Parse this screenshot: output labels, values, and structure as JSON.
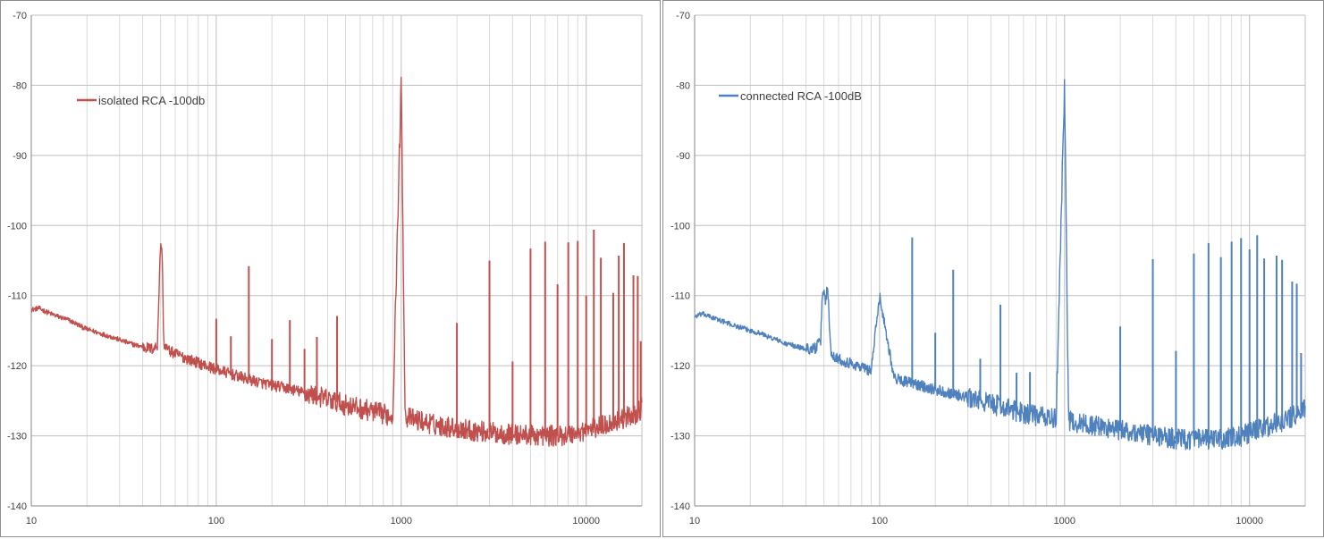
{
  "chart_data": [
    {
      "type": "line",
      "title": "",
      "xlabel": "",
      "ylabel": "",
      "x_scale": "log",
      "xlim": [
        10,
        20000
      ],
      "ylim": [
        -140,
        -70
      ],
      "xticks": [
        10,
        100,
        1000,
        10000
      ],
      "xtick_labels": [
        "10",
        "100",
        "1000",
        "10000"
      ],
      "yticks": [
        -70,
        -80,
        -90,
        -100,
        -110,
        -120,
        -130,
        -140
      ],
      "ytick_labels": [
        "-70",
        "-80",
        "-90",
        "-100",
        "-110",
        "-120",
        "-130",
        "-140"
      ],
      "grid": true,
      "legend_position": "top-left",
      "series": [
        {
          "name": "isolated RCA -100db",
          "color": "#c0504d",
          "x": [
            10,
            11,
            12,
            14,
            16,
            18,
            20,
            23,
            25,
            28,
            30,
            33,
            36,
            40,
            45,
            48,
            50,
            51,
            52,
            55,
            60,
            70,
            80,
            90,
            100,
            120,
            150,
            200,
            250,
            300,
            350,
            400,
            450,
            500,
            600,
            700,
            800,
            900,
            1000,
            1050,
            1200,
            1500,
            2000,
            2500,
            3000,
            3500,
            4000,
            5000,
            6000,
            7000,
            8000,
            9000,
            10000,
            11000,
            12000,
            14000,
            16000,
            18000,
            19000,
            20000
          ],
          "y": [
            -112,
            -111.8,
            -112.3,
            -113,
            -113.5,
            -114.2,
            -114.8,
            -115.3,
            -115.6,
            -116,
            -116.3,
            -116.7,
            -117,
            -117.3,
            -117.6,
            -117.2,
            -102.3,
            -104,
            -116.8,
            -117.8,
            -118.3,
            -119,
            -119.6,
            -120.1,
            -120.5,
            -121.2,
            -122,
            -122.8,
            -123.3,
            -123.9,
            -124.3,
            -124.8,
            -125.2,
            -125.6,
            -126.1,
            -126.5,
            -126.9,
            -127.2,
            -79.5,
            -127.3,
            -127.7,
            -128.4,
            -128.9,
            -129.3,
            -129.5,
            -129.7,
            -129.8,
            -129.9,
            -130,
            -130,
            -129.8,
            -129.5,
            -129.2,
            -128.9,
            -128.6,
            -128,
            -127.5,
            -127,
            -126.7,
            -126
          ]
        }
      ],
      "spikes": [
        {
          "x": 100,
          "y": -113.3
        },
        {
          "x": 120,
          "y": -115.8
        },
        {
          "x": 150,
          "y": -105.8
        },
        {
          "x": 200,
          "y": -116.2
        },
        {
          "x": 250,
          "y": -113.5
        },
        {
          "x": 300,
          "y": -117.6
        },
        {
          "x": 350,
          "y": -115.9
        },
        {
          "x": 450,
          "y": -112.9
        },
        {
          "x": 2000,
          "y": -113.9
        },
        {
          "x": 3000,
          "y": -105
        },
        {
          "x": 4000,
          "y": -119.4
        },
        {
          "x": 5000,
          "y": -103.3
        },
        {
          "x": 6000,
          "y": -102.3
        },
        {
          "x": 7000,
          "y": -108.4
        },
        {
          "x": 8000,
          "y": -102.4
        },
        {
          "x": 9000,
          "y": -102.2
        },
        {
          "x": 10000,
          "y": -110
        },
        {
          "x": 11000,
          "y": -100.6
        },
        {
          "x": 12000,
          "y": -104.6
        },
        {
          "x": 14000,
          "y": -109.6
        },
        {
          "x": 15000,
          "y": -104.3
        },
        {
          "x": 16000,
          "y": -102.5
        },
        {
          "x": 18000,
          "y": -107.1
        },
        {
          "x": 19000,
          "y": -107.2
        },
        {
          "x": 19700,
          "y": -116.5
        }
      ]
    },
    {
      "type": "line",
      "title": "",
      "xlabel": "",
      "ylabel": "",
      "x_scale": "log",
      "xlim": [
        10,
        20000
      ],
      "ylim": [
        -140,
        -70
      ],
      "xticks": [
        10,
        100,
        1000,
        10000
      ],
      "xtick_labels": [
        "10",
        "100",
        "1000",
        "10000"
      ],
      "yticks": [
        -70,
        -80,
        -90,
        -100,
        -110,
        -120,
        -130,
        -140
      ],
      "ytick_labels": [
        "-70",
        "-80",
        "-90",
        "-100",
        "-110",
        "-120",
        "-130",
        "-140"
      ],
      "grid": true,
      "legend_position": "top-left",
      "series": [
        {
          "name": "connected RCA -100dB",
          "color": "#4f81bd",
          "x": [
            10,
            11,
            12,
            14,
            16,
            18,
            20,
            23,
            25,
            28,
            30,
            33,
            36,
            40,
            45,
            48,
            49,
            50,
            51,
            52,
            53,
            54,
            55,
            60,
            70,
            80,
            90,
            100,
            120,
            150,
            200,
            250,
            300,
            350,
            400,
            450,
            500,
            600,
            700,
            800,
            900,
            1000,
            1050,
            1200,
            1500,
            2000,
            2500,
            3000,
            3500,
            4000,
            5000,
            6000,
            7000,
            8000,
            9000,
            10000,
            11000,
            12000,
            14000,
            16000,
            18000,
            19000,
            20000
          ],
          "y": [
            -113,
            -112.6,
            -113,
            -113.6,
            -114.2,
            -114.6,
            -115,
            -115.4,
            -115.9,
            -116.3,
            -116.8,
            -117,
            -117.3,
            -117.6,
            -117.5,
            -116.5,
            -110,
            -109,
            -111,
            -108.8,
            -110.5,
            -117,
            -118.3,
            -119,
            -119.7,
            -120.2,
            -120.7,
            -110,
            -121.8,
            -122.5,
            -123.4,
            -124,
            -124.6,
            -125,
            -125.4,
            -125.8,
            -126.2,
            -126.7,
            -127.1,
            -127.4,
            -127.7,
            -79.4,
            -127.9,
            -128.2,
            -128.6,
            -129.2,
            -129.6,
            -129.9,
            -130.2,
            -130.4,
            -130.5,
            -130.6,
            -130.5,
            -130.3,
            -130,
            -129.6,
            -129.2,
            -128.8,
            -128.2,
            -127.6,
            -127,
            -126.6,
            -126.2
          ]
        }
      ],
      "spikes": [
        {
          "x": 100,
          "y": -110
        },
        {
          "x": 150,
          "y": -101.7
        },
        {
          "x": 200,
          "y": -115.3
        },
        {
          "x": 250,
          "y": -106.3
        },
        {
          "x": 350,
          "y": -119
        },
        {
          "x": 450,
          "y": -111.3
        },
        {
          "x": 550,
          "y": -121
        },
        {
          "x": 650,
          "y": -120.9
        },
        {
          "x": 2000,
          "y": -114.4
        },
        {
          "x": 3000,
          "y": -104.8
        },
        {
          "x": 4000,
          "y": -117.9
        },
        {
          "x": 5000,
          "y": -104
        },
        {
          "x": 6000,
          "y": -102.5
        },
        {
          "x": 7000,
          "y": -104.5
        },
        {
          "x": 8000,
          "y": -102.3
        },
        {
          "x": 9000,
          "y": -101.8
        },
        {
          "x": 10000,
          "y": -103.4
        },
        {
          "x": 11000,
          "y": -101.4
        },
        {
          "x": 12000,
          "y": -104.7
        },
        {
          "x": 14000,
          "y": -104.3
        },
        {
          "x": 15000,
          "y": -104.9
        },
        {
          "x": 17000,
          "y": -108
        },
        {
          "x": 18000,
          "y": -108.3
        },
        {
          "x": 19000,
          "y": -118.2
        }
      ]
    }
  ]
}
